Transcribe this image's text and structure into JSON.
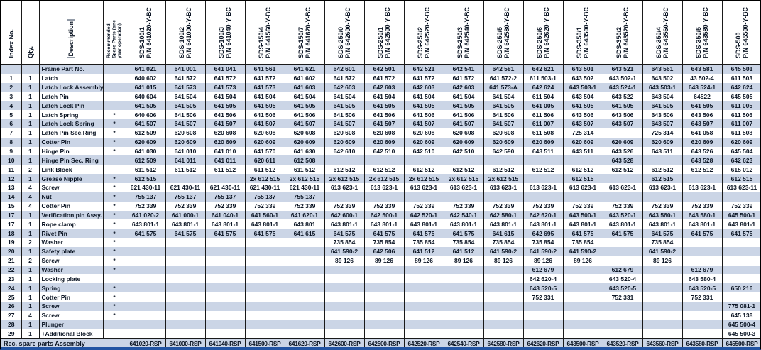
{
  "left_headers": {
    "index_no": "Index No.",
    "qty": "Qty.",
    "description": "Description",
    "recommended": "Recommended\nSpare Parts (one\nyear operation)"
  },
  "columns": [
    {
      "model": "SDS-100/1",
      "pn": "P/N 641020-Y-BC",
      "rsp": "641020-RSP"
    },
    {
      "model": "SDS-100/2",
      "pn": "P/N 641000-Y-BC",
      "rsp": "641000-RSP"
    },
    {
      "model": "SDS-100/3",
      "pn": "P/N 641040-Y-BC",
      "rsp": "641040-RSP"
    },
    {
      "model": "SDS-150/4",
      "pn": "P/N 641560-Y-BC",
      "rsp": "641500-RSP"
    },
    {
      "model": "SDS-150/7",
      "pn": "P/N 641620-Y-BC",
      "rsp": "641620-RSP"
    },
    {
      "model": "SDS-250/0",
      "pn": "P/N 642600-Y-BC",
      "rsp": "642600-RSP"
    },
    {
      "model": "SDS-250/1",
      "pn": "P/N 642500-Y-BC",
      "rsp": "642500-RSP"
    },
    {
      "model": "SDS-250/2",
      "pn": "P/N 642520-Y-BC",
      "rsp": "642520-RSP"
    },
    {
      "model": "SDS-250/3",
      "pn": "P/N 642540-Y-BC",
      "rsp": "642540-RSP"
    },
    {
      "model": "SDS-250/5",
      "pn": "P/N 642580-Y-BC",
      "rsp": "642580-RSP"
    },
    {
      "model": "SDS-250/6",
      "pn": "P/N 642620-Y-BC",
      "rsp": "642620-RSP"
    },
    {
      "model": "SDS-350/1",
      "pn": "P/N 643500-Y-BC",
      "rsp": "643500-RSP"
    },
    {
      "model": "SDS-350/2",
      "pn": "P/N 643520-Y-BC",
      "rsp": "643520-RSP"
    },
    {
      "model": "SDS-350/4",
      "pn": "P/N 643560-Y-BC",
      "rsp": "643560-RSP"
    },
    {
      "model": "SDS-350/5",
      "pn": "P/N 643580-Y-BC",
      "rsp": "643580-RSP"
    },
    {
      "model": "SDS-500",
      "pn": "P/N 645500-Y-BC",
      "rsp": "645500-RSP"
    }
  ],
  "rows": [
    {
      "index": "",
      "qty": "",
      "desc": "Frame Part No.",
      "star": "",
      "values": [
        "641 021",
        "641 001",
        "641 041",
        "641 561",
        "641 621",
        "642 601",
        "642 501",
        "642 521",
        "642 541",
        "642 581",
        "642 621",
        "643 501",
        "643 521",
        "643 561",
        "643 581",
        "645 501"
      ]
    },
    {
      "index": "1",
      "qty": "1",
      "desc": "Latch",
      "star": "",
      "values": [
        "640 602",
        "641 572",
        "641 572",
        "641 572",
        "641 602",
        "641 572",
        "641 572",
        "641 572",
        "641 572",
        "641 572-2",
        "611 503-1",
        "643 502",
        "643 502-1",
        "643 502",
        "43 502-4",
        "611 503"
      ]
    },
    {
      "index": "2",
      "qty": "1",
      "desc": "Latch Lock Assembly",
      "star": "",
      "values": [
        "641 015",
        "641 573",
        "641 573",
        "641 573",
        "641 603",
        "642 603",
        "642 603",
        "642 603",
        "642 603",
        "641 573-A",
        "642 624",
        "643 503-1",
        "643 524-1",
        "643 503-1",
        "643 524-1",
        "642 624"
      ]
    },
    {
      "index": "3",
      "qty": "1",
      "desc": "Latch Pin",
      "star": "",
      "values": [
        "640 604",
        "641 504",
        "641 504",
        "641 504",
        "641 504",
        "641 504",
        "641 504",
        "641 504",
        "641 504",
        "641 504",
        "611 504",
        "643 504",
        "643 522",
        "643 504",
        "64522",
        "645 505"
      ]
    },
    {
      "index": "4",
      "qty": "1",
      "desc": "Latch Lock Pin",
      "star": "",
      "values": [
        "641 505",
        "641 505",
        "641 505",
        "641 505",
        "641 505",
        "641 505",
        "641 505",
        "641 505",
        "641 505",
        "641 505",
        "641 005",
        "641 505",
        "641 505",
        "641 505",
        "641 505",
        "611 005"
      ]
    },
    {
      "index": "5",
      "qty": "1",
      "desc": "Latch Spring",
      "star": "*",
      "values": [
        "640 606",
        "641 506",
        "641 506",
        "641 506",
        "641 506",
        "641 506",
        "641 506",
        "641 506",
        "641 506",
        "641 506",
        "611 506",
        "643 506",
        "643 506",
        "643 506",
        "643 506",
        "611 506"
      ]
    },
    {
      "index": "6",
      "qty": "1",
      "desc": "Latch Lock Spring",
      "star": "*",
      "values": [
        "641 507",
        "641 507",
        "641 507",
        "641 507",
        "641 507",
        "641 507",
        "641 507",
        "641 507",
        "641 507",
        "641 507",
        "611 007",
        "643 507",
        "643 507",
        "643 507",
        "643 507",
        "611 007"
      ]
    },
    {
      "index": "7",
      "qty": "1",
      "desc": "Latch Pin Sec.Ring",
      "star": "*",
      "values": [
        "612 509",
        "620 608",
        "620 608",
        "620 608",
        "620 608",
        "620 608",
        "620 608",
        "620 608",
        "620 608",
        "620 608",
        "611 508",
        "725 314",
        "",
        "725 314",
        "641 058",
        "611 508"
      ]
    },
    {
      "index": "8",
      "qty": "1",
      "desc": "Cotter Pin",
      "star": "*",
      "values": [
        "620 609",
        "620 609",
        "620 609",
        "620 609",
        "620 609",
        "620 609",
        "620 609",
        "620 609",
        "620 609",
        "620 609",
        "620 609",
        "620 609",
        "620 609",
        "620 609",
        "620 609",
        "620 609"
      ]
    },
    {
      "index": "9",
      "qty": "1",
      "desc": "Hinge Pin",
      "star": "*",
      "values": [
        "641 030",
        "641 010",
        "641 010",
        "641 570",
        "641 630",
        "642 610",
        "642 510",
        "642 510",
        "642 510",
        "642 590",
        "643 511",
        "643 511",
        "643 526",
        "643 511",
        "643 526",
        "645 504"
      ]
    },
    {
      "index": "10",
      "qty": "1",
      "desc": "Hinge Pin Sec. Ring",
      "star": "",
      "values": [
        "612 509",
        "641 011",
        "641 011",
        "620 611",
        "612 508",
        "",
        "",
        "",
        "",
        "",
        "",
        "",
        "643 528",
        "",
        "643 528",
        "642 623"
      ]
    },
    {
      "index": "11",
      "qty": "2",
      "desc": "Link Block",
      "star": "",
      "values": [
        "611 512",
        "611 512",
        "611 512",
        "611 512",
        "611 512",
        "612 512",
        "612 512",
        "612 512",
        "612 512",
        "612 512",
        "612 512",
        "612 512",
        "612 512",
        "612 512",
        "612 512",
        "615 012"
      ]
    },
    {
      "index": "12",
      "qty": "1",
      "desc": "Grease Nipple",
      "star": "*",
      "values": [
        "612 515",
        "",
        "",
        "2x 612 515",
        "2x 612 515",
        "2x 612 515",
        "2x 612 515",
        "2x 612 515",
        "2x 612 515",
        "2x 612 515",
        "",
        "612 515",
        "",
        "612 515",
        "",
        "612 515"
      ]
    },
    {
      "index": "13",
      "qty": "4",
      "desc": "Screw",
      "star": "*",
      "values": [
        "621 430-11",
        "621 430-11",
        "621 430-11",
        "621 430-11",
        "621 430-11",
        "613 623-1",
        "613 623-1",
        "613 623-1",
        "613 623-1",
        "613 623-1",
        "613 623-1",
        "613 623-1",
        "613 623-1",
        "613 623-1",
        "613 623-1",
        "613 623-11"
      ]
    },
    {
      "index": "14",
      "qty": "4",
      "desc": "Nut",
      "star": "*",
      "values": [
        "755 137",
        "755 137",
        "755 137",
        "755 137",
        "755 137",
        "",
        "",
        "",
        "",
        "",
        "",
        "",
        "",
        "",
        "",
        ""
      ]
    },
    {
      "index": "15",
      "qty": "4",
      "desc": "Cotter Pin",
      "star": "*",
      "values": [
        "752 339",
        "752 339",
        "752 339",
        "752 339",
        "752 339",
        "752 339",
        "752 339",
        "752 339",
        "752 339",
        "752 339",
        "752 339",
        "752 339",
        "752 339",
        "752 339",
        "752 339",
        "752 339"
      ]
    },
    {
      "index": "17",
      "qty": "1",
      "desc": "Verification pin Assy.",
      "star": "*",
      "values": [
        "641 020-2",
        "641 000-1",
        "641 040-1",
        "641 560-1",
        "641 620-1",
        "642 600-1",
        "642 500-1",
        "642 520-1",
        "642 540-1",
        "642 580-1",
        "642 620-1",
        "643 500-1",
        "643 520-1",
        "643 560-1",
        "643 580-1",
        "645 500-1"
      ]
    },
    {
      "index": "17",
      "qty": "1",
      "desc": "Rope clamp",
      "star": "*",
      "values": [
        "643 801-1",
        "643 801-1",
        "643 801-1",
        "643 801-1",
        "643 801",
        "643 801-1",
        "643 801-1",
        "643 801-1",
        "643 801-1",
        "643 801-1",
        "643 801-1",
        "643 801-1",
        "643 801-1",
        "643 801-1",
        "643 801-1",
        "643 801-1"
      ]
    },
    {
      "index": "18",
      "qty": "1",
      "desc": "Rivet Pin",
      "star": "*",
      "values": [
        "641 575",
        "641 575",
        "641 575",
        "641 575",
        "641 615",
        "641 575",
        "641 575",
        "641 575",
        "641 575",
        "641 615",
        "642 695",
        "641 575",
        "641 575",
        "641 575",
        "641 575",
        "641 575"
      ]
    },
    {
      "index": "19",
      "qty": "2",
      "desc": "Washer",
      "star": "*",
      "values": [
        "",
        "",
        "",
        "",
        "",
        "735 854",
        "735 854",
        "735 854",
        "735 854",
        "735 854",
        "735 854",
        "735 854",
        "",
        "735 854",
        "",
        ""
      ]
    },
    {
      "index": "20",
      "qty": "1",
      "desc": "Safety plate",
      "star": "*",
      "values": [
        "",
        "",
        "",
        "",
        "",
        "641 590-2",
        "642 506",
        "641 512",
        "641 512",
        "641 590-2",
        "641 590-2",
        "641 590-2",
        "",
        "641 590-2",
        "",
        ""
      ]
    },
    {
      "index": "21",
      "qty": "2",
      "desc": "Screw",
      "star": "*",
      "values": [
        "",
        "",
        "",
        "",
        "",
        "89 126",
        "89 126",
        "89 126",
        "89 126",
        "89 126",
        "89 126",
        "89 126",
        "",
        "89 126",
        "",
        ""
      ]
    },
    {
      "index": "22",
      "qty": "1",
      "desc": "Washer",
      "star": "*",
      "values": [
        "",
        "",
        "",
        "",
        "",
        "",
        "",
        "",
        "",
        "",
        "612 679",
        "",
        "612 679",
        "",
        "612 679",
        ""
      ]
    },
    {
      "index": "23",
      "qty": "1",
      "desc": "Locking plate",
      "star": "",
      "values": [
        "",
        "",
        "",
        "",
        "",
        "",
        "",
        "",
        "",
        "",
        "642 620-4",
        "",
        "643 520-4",
        "",
        "643 580-4",
        ""
      ]
    },
    {
      "index": "24",
      "qty": "1",
      "desc": "Spring",
      "star": "*",
      "values": [
        "",
        "",
        "",
        "",
        "",
        "",
        "",
        "",
        "",
        "",
        "643 520-5",
        "",
        "643 520-5",
        "",
        "643 520-5",
        "650 216"
      ]
    },
    {
      "index": "25",
      "qty": "1",
      "desc": "Cotter Pin",
      "star": "*",
      "values": [
        "",
        "",
        "",
        "",
        "",
        "",
        "",
        "",
        "",
        "",
        "752 331",
        "",
        "752 331",
        "",
        "752 331",
        ""
      ]
    },
    {
      "index": "26",
      "qty": "1",
      "desc": "Screw",
      "star": "*",
      "values": [
        "",
        "",
        "",
        "",
        "",
        "",
        "",
        "",
        "",
        "",
        "",
        "",
        "",
        "",
        "",
        "775 081-1"
      ]
    },
    {
      "index": "27",
      "qty": "4",
      "desc": "Screw",
      "star": "*",
      "values": [
        "",
        "",
        "",
        "",
        "",
        "",
        "",
        "",
        "",
        "",
        "",
        "",
        "",
        "",
        "",
        "645 138"
      ]
    },
    {
      "index": "28",
      "qty": "1",
      "desc": "Plunger",
      "star": "",
      "values": [
        "",
        "",
        "",
        "",
        "",
        "",
        "",
        "",
        "",
        "",
        "",
        "",
        "",
        "",
        "",
        "645 500-4"
      ]
    },
    {
      "index": "29",
      "qty": "1",
      "desc": "+Additional Block",
      "star": "",
      "values": [
        "",
        "",
        "",
        "",
        "",
        "",
        "",
        "",
        "",
        "",
        "",
        "",
        "",
        "",
        "",
        "645 500-3"
      ]
    }
  ],
  "footer": {
    "label": "Rec. spare parts Assembly"
  },
  "colors": {
    "band_blue": "#cbd5e6",
    "grid_black": "#1a1a1a",
    "text": "#0b1524",
    "bottom_bar_blue": "#2254a3"
  }
}
